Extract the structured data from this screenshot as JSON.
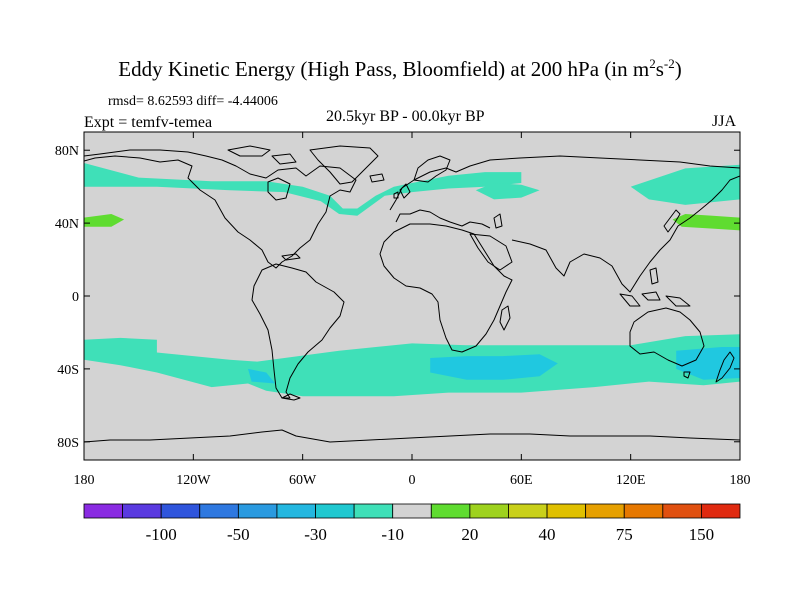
{
  "title": {
    "main": "Eddy Kinetic Energy (High Pass, Bloomfield) at 200 hPa (in m",
    "sup1": "2",
    "mid": "s",
    "sup2": "-2",
    "end": ")"
  },
  "stats": {
    "rmsd": "rmsd= 8.62593 diff= -4.44006",
    "expt": "Expt = temfv-temea",
    "period": "20.5kyr BP - 00.0kyr BP",
    "season": "JJA"
  },
  "map": {
    "type": "contour",
    "projection": "cylindrical-equidistant",
    "lon_range": [
      -180,
      180
    ],
    "lat_range": [
      -90,
      90
    ],
    "background": "#d3d3d3",
    "lat_ticks": [
      {
        "value": 80,
        "label": "80N"
      },
      {
        "value": 40,
        "label": "40N"
      },
      {
        "value": 0,
        "label": "0"
      },
      {
        "value": -40,
        "label": "40S"
      },
      {
        "value": -80,
        "label": "80S"
      }
    ],
    "lon_ticks": [
      {
        "value": -180,
        "label": "180"
      },
      {
        "value": -120,
        "label": "120W"
      },
      {
        "value": -60,
        "label": "60W"
      },
      {
        "value": 0,
        "label": "0"
      },
      {
        "value": 60,
        "label": "60E"
      },
      {
        "value": 120,
        "label": "120E"
      },
      {
        "value": 180,
        "label": "180"
      }
    ],
    "regions": [
      {
        "name": "nh-storm-track-atlantic",
        "level": "-10",
        "color": "#3fe0b8",
        "points": [
          [
            -180,
            73
          ],
          [
            -150,
            65
          ],
          [
            -110,
            63
          ],
          [
            -80,
            63
          ],
          [
            -60,
            60
          ],
          [
            -45,
            55
          ],
          [
            -38,
            48
          ],
          [
            -30,
            48
          ],
          [
            -20,
            55
          ],
          [
            -10,
            60
          ],
          [
            0,
            62
          ],
          [
            20,
            66
          ],
          [
            40,
            68
          ],
          [
            60,
            68
          ],
          [
            60,
            62
          ],
          [
            40,
            60
          ],
          [
            20,
            59
          ],
          [
            0,
            57
          ],
          [
            -15,
            55
          ],
          [
            -30,
            44
          ],
          [
            -40,
            45
          ],
          [
            -50,
            52
          ],
          [
            -70,
            57
          ],
          [
            -100,
            58
          ],
          [
            -140,
            60
          ],
          [
            -180,
            60
          ]
        ]
      },
      {
        "name": "nh-storm-track-asia",
        "level": "-10",
        "color": "#3fe0b8",
        "points": [
          [
            35,
            58
          ],
          [
            45,
            62
          ],
          [
            60,
            61
          ],
          [
            70,
            58
          ],
          [
            60,
            54
          ],
          [
            45,
            53
          ]
        ]
      },
      {
        "name": "nh-storm-track-pacific",
        "level": "-10",
        "color": "#3fe0b8",
        "points": [
          [
            120,
            60
          ],
          [
            150,
            70
          ],
          [
            180,
            72
          ],
          [
            180,
            53
          ],
          [
            150,
            50
          ],
          [
            130,
            53
          ]
        ]
      },
      {
        "name": "nh-patch-20-west",
        "level": "20",
        "color": "#5fdc30",
        "points": [
          [
            -180,
            43
          ],
          [
            -165,
            45
          ],
          [
            -158,
            42
          ],
          [
            -165,
            38
          ],
          [
            -180,
            38
          ]
        ]
      },
      {
        "name": "nh-patch-20-east",
        "level": "20",
        "color": "#5fdc30",
        "points": [
          [
            143,
            42
          ],
          [
            150,
            45
          ],
          [
            165,
            44
          ],
          [
            180,
            43
          ],
          [
            180,
            36
          ],
          [
            165,
            37
          ],
          [
            148,
            38
          ]
        ]
      },
      {
        "name": "sh-storm-track",
        "level": "-10",
        "color": "#3fe0b8",
        "points": [
          [
            -180,
            -24
          ],
          [
            -160,
            -23
          ],
          [
            -140,
            -24
          ],
          [
            -140,
            -31
          ],
          [
            -120,
            -33
          ],
          [
            -100,
            -35
          ],
          [
            -85,
            -36
          ],
          [
            -70,
            -34
          ],
          [
            -40,
            -30
          ],
          [
            0,
            -26
          ],
          [
            30,
            -27
          ],
          [
            60,
            -27
          ],
          [
            90,
            -27
          ],
          [
            120,
            -27
          ],
          [
            150,
            -22
          ],
          [
            180,
            -21
          ],
          [
            180,
            -47
          ],
          [
            160,
            -49
          ],
          [
            130,
            -47
          ],
          [
            100,
            -50
          ],
          [
            60,
            -53
          ],
          [
            20,
            -53
          ],
          [
            -10,
            -55
          ],
          [
            -40,
            -55
          ],
          [
            -60,
            -55
          ],
          [
            -80,
            -52
          ],
          [
            -90,
            -48
          ],
          [
            -110,
            -50
          ],
          [
            -140,
            -42
          ],
          [
            -160,
            -38
          ],
          [
            -180,
            -35
          ]
        ]
      },
      {
        "name": "sh-core-indian",
        "level": "-30",
        "color": "#20c8e0",
        "points": [
          [
            10,
            -34
          ],
          [
            30,
            -33
          ],
          [
            50,
            -33
          ],
          [
            70,
            -32
          ],
          [
            80,
            -37
          ],
          [
            70,
            -44
          ],
          [
            50,
            -46
          ],
          [
            30,
            -46
          ],
          [
            10,
            -42
          ]
        ]
      },
      {
        "name": "sh-core-australia",
        "level": "-30",
        "color": "#20c8e0",
        "points": [
          [
            145,
            -30
          ],
          [
            170,
            -28
          ],
          [
            180,
            -28
          ],
          [
            180,
            -45
          ],
          [
            160,
            -46
          ],
          [
            145,
            -40
          ]
        ]
      },
      {
        "name": "sh-core-chile",
        "level": "-30",
        "color": "#20c8e0",
        "points": [
          [
            -90,
            -40
          ],
          [
            -80,
            -42
          ],
          [
            -75,
            -48
          ],
          [
            -88,
            -47
          ]
        ]
      }
    ]
  },
  "colorbar": {
    "colors": [
      "#8a2be2",
      "#5a3ae0",
      "#2f55dc",
      "#2e78e0",
      "#2a9ae0",
      "#24b7e0",
      "#20c8d0",
      "#3fe0b8",
      "#d3d3d3",
      "#5fdc30",
      "#9ed21e",
      "#c9d01a",
      "#e0c000",
      "#e6a000",
      "#e67800",
      "#e05010",
      "#e02a10"
    ],
    "labels": [
      {
        "boundary": 2,
        "text": "-100"
      },
      {
        "boundary": 4,
        "text": "-50"
      },
      {
        "boundary": 6,
        "text": "-30"
      },
      {
        "boundary": 8,
        "text": "-10"
      },
      {
        "boundary": 10,
        "text": "20"
      },
      {
        "boundary": 12,
        "text": "40"
      },
      {
        "boundary": 14,
        "text": "75"
      },
      {
        "boundary": 16,
        "text": "150"
      }
    ]
  }
}
